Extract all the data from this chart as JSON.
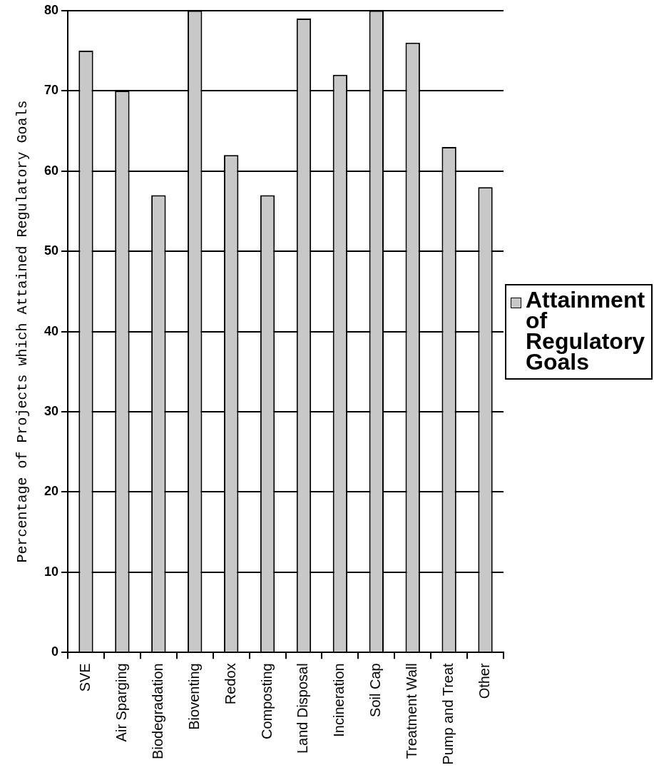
{
  "chart_data": {
    "type": "bar",
    "categories": [
      "SVE",
      "Air Sparging",
      "Biodegradation",
      "Bioventing",
      "Redox",
      "Composting",
      "Land Disposal",
      "Incineration",
      "Soil Cap",
      "Treatment Wall",
      "Pump and Treat",
      "Other"
    ],
    "series": [
      {
        "name": "Attainment of Regulatory Goals",
        "color": "#c8c8c8",
        "values": [
          75,
          70,
          57,
          80,
          62,
          57,
          79,
          72,
          80,
          76,
          63,
          58
        ]
      }
    ],
    "ylabel": "Percentage of Projects which Attained Regulatory Goals",
    "ylim": [
      0,
      80
    ],
    "yticks": [
      0,
      10,
      20,
      30,
      40,
      50,
      60,
      70,
      80
    ],
    "grid": "y",
    "legend": "right"
  }
}
